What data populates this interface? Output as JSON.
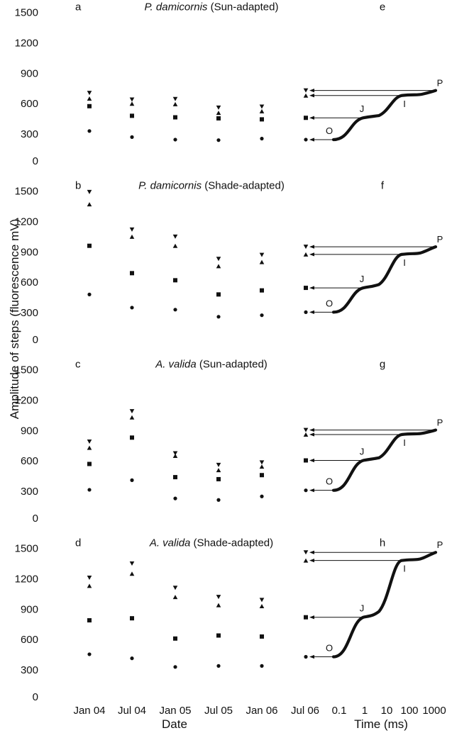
{
  "chart_data": {
    "type": "scatter",
    "ylabel": "Amplitude of steps (fluorescence mV)",
    "xlabel_left": "Date",
    "xlabel_right": "Time (ms)",
    "date_ticks": [
      "Jan 04",
      "Jul 04",
      "Jan 05",
      "Jul 05",
      "Jan 06",
      "Jul 06"
    ],
    "time_ticks": [
      "0.1",
      "1",
      "10",
      "100",
      "1000"
    ],
    "y_ticks": [
      "0",
      "300",
      "600",
      "900",
      "1200",
      "1500"
    ],
    "ylim": [
      0,
      1500
    ],
    "step_labels": [
      "O",
      "J",
      "I",
      "P"
    ],
    "panels": [
      {
        "label": "a",
        "curve_label": "e",
        "title_species": "P. damicornis",
        "title_suffix": "(Sun-adapted)",
        "series": {
          "O": [
            330,
            270,
            245,
            240,
            255
          ],
          "J": [
            575,
            480,
            465,
            455,
            445
          ],
          "I": [
            650,
            600,
            595,
            510,
            525
          ],
          "P": [
            705,
            640,
            645,
            560,
            570
          ]
        },
        "curve_levels": {
          "O": 245,
          "J": 460,
          "I": 680,
          "P": 730
        }
      },
      {
        "label": "b",
        "curve_label": "f",
        "title_species": "P. damicornis",
        "title_suffix": "(Shade-adapted)",
        "series": {
          "O": [
            480,
            350,
            330,
            260,
            275
          ],
          "J": [
            960,
            690,
            620,
            480,
            520
          ],
          "I": [
            1370,
            1050,
            960,
            760,
            800
          ],
          "P": [
            1490,
            1120,
            1050,
            830,
            870
          ]
        },
        "curve_levels": {
          "O": 305,
          "J": 545,
          "I": 875,
          "P": 950
        }
      },
      {
        "label": "c",
        "curve_label": "g",
        "title_species": "A. valida",
        "title_suffix": "(Sun-adapted)",
        "series": {
          "O": [
            315,
            410,
            230,
            215,
            250
          ],
          "J": [
            570,
            830,
            440,
            420,
            460
          ],
          "I": [
            730,
            1030,
            650,
            510,
            545
          ],
          "P": [
            790,
            1090,
            675,
            560,
            585
          ]
        },
        "curve_levels": {
          "O": 310,
          "J": 605,
          "I": 860,
          "P": 905
        }
      },
      {
        "label": "d",
        "curve_label": "h",
        "title_species": "A. valida",
        "title_suffix": "(Shade-adapted)",
        "series": {
          "O": [
            455,
            415,
            330,
            340,
            340
          ],
          "J": [
            790,
            810,
            610,
            640,
            630
          ],
          "I": [
            1130,
            1250,
            1020,
            940,
            930
          ],
          "P": [
            1210,
            1350,
            1110,
            1020,
            990
          ]
        },
        "curve_levels": {
          "O": 430,
          "J": 820,
          "I": 1380,
          "P": 1460
        }
      }
    ]
  }
}
